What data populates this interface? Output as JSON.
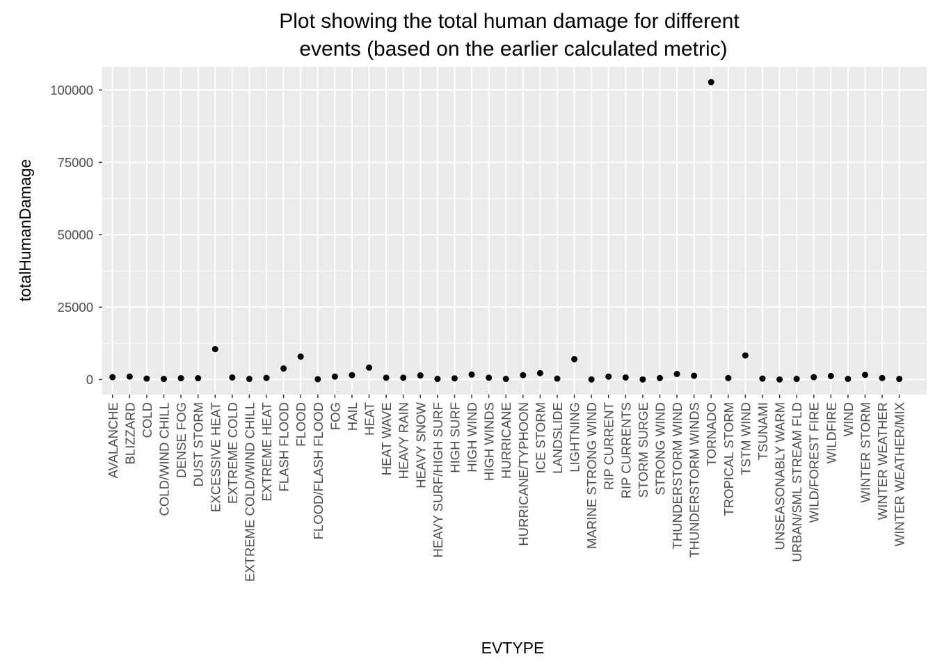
{
  "chart_data": {
    "type": "scatter",
    "title_lines": [
      "Plot showing the total human damage for different",
      "events (based on the earlier calculated metric)"
    ],
    "xlabel": "EVTYPE",
    "ylabel": "totalHumanDamage",
    "ylim": [
      -5200,
      108000
    ],
    "y_ticks": [
      0,
      25000,
      50000,
      75000,
      100000
    ],
    "y_tick_labels": [
      "0",
      "25000",
      "50000",
      "75000",
      "100000"
    ],
    "grid": true,
    "legend": "none",
    "colors": {
      "panel": "#ebebeb",
      "grid": "#ffffff",
      "point": "#000000",
      "tick_text": "#4d4d4d"
    },
    "categories": [
      "AVALANCHE",
      "BLIZZARD",
      "COLD",
      "COLD/WIND CHILL",
      "DENSE FOG",
      "DUST STORM",
      "EXCESSIVE HEAT",
      "EXTREME COLD",
      "EXTREME COLD/WIND CHILL",
      "EXTREME HEAT",
      "FLASH FLOOD",
      "FLOOD",
      "FLOOD/FLASH FLOOD",
      "FOG",
      "HAIL",
      "HEAT",
      "HEAT WAVE",
      "HEAVY RAIN",
      "HEAVY SNOW",
      "HEAVY SURF/HIGH SURF",
      "HIGH SURF",
      "HIGH WIND",
      "HIGH WINDS",
      "HURRICANE",
      "HURRICANE/TYPHOON",
      "ICE STORM",
      "LANDSLIDE",
      "LIGHTNING",
      "MARINE STRONG WIND",
      "RIP CURRENT",
      "RIP CURRENTS",
      "STORM SURGE",
      "STRONG WIND",
      "THUNDERSTORM WIND",
      "THUNDERSTORM WINDS",
      "TORNADO",
      "TROPICAL STORM",
      "TSTM WIND",
      "TSUNAMI",
      "UNSEASONABLY WARM",
      "URBAN/SML STREAM FLD",
      "WILD/FOREST FIRE",
      "WILDFIRE",
      "WIND",
      "WINTER STORM",
      "WINTER WEATHER",
      "WINTER WEATHER/MIX"
    ],
    "values": [
      800,
      1000,
      300,
      200,
      450,
      450,
      10500,
      700,
      200,
      550,
      3800,
      7900,
      100,
      1000,
      1500,
      4100,
      600,
      600,
      1400,
      200,
      400,
      1700,
      600,
      200,
      1500,
      2200,
      300,
      7000,
      0,
      1000,
      700,
      0,
      500,
      1900,
      1300,
      102700,
      500,
      8300,
      300,
      0,
      200,
      800,
      1200,
      200,
      1600,
      500,
      200
    ]
  }
}
